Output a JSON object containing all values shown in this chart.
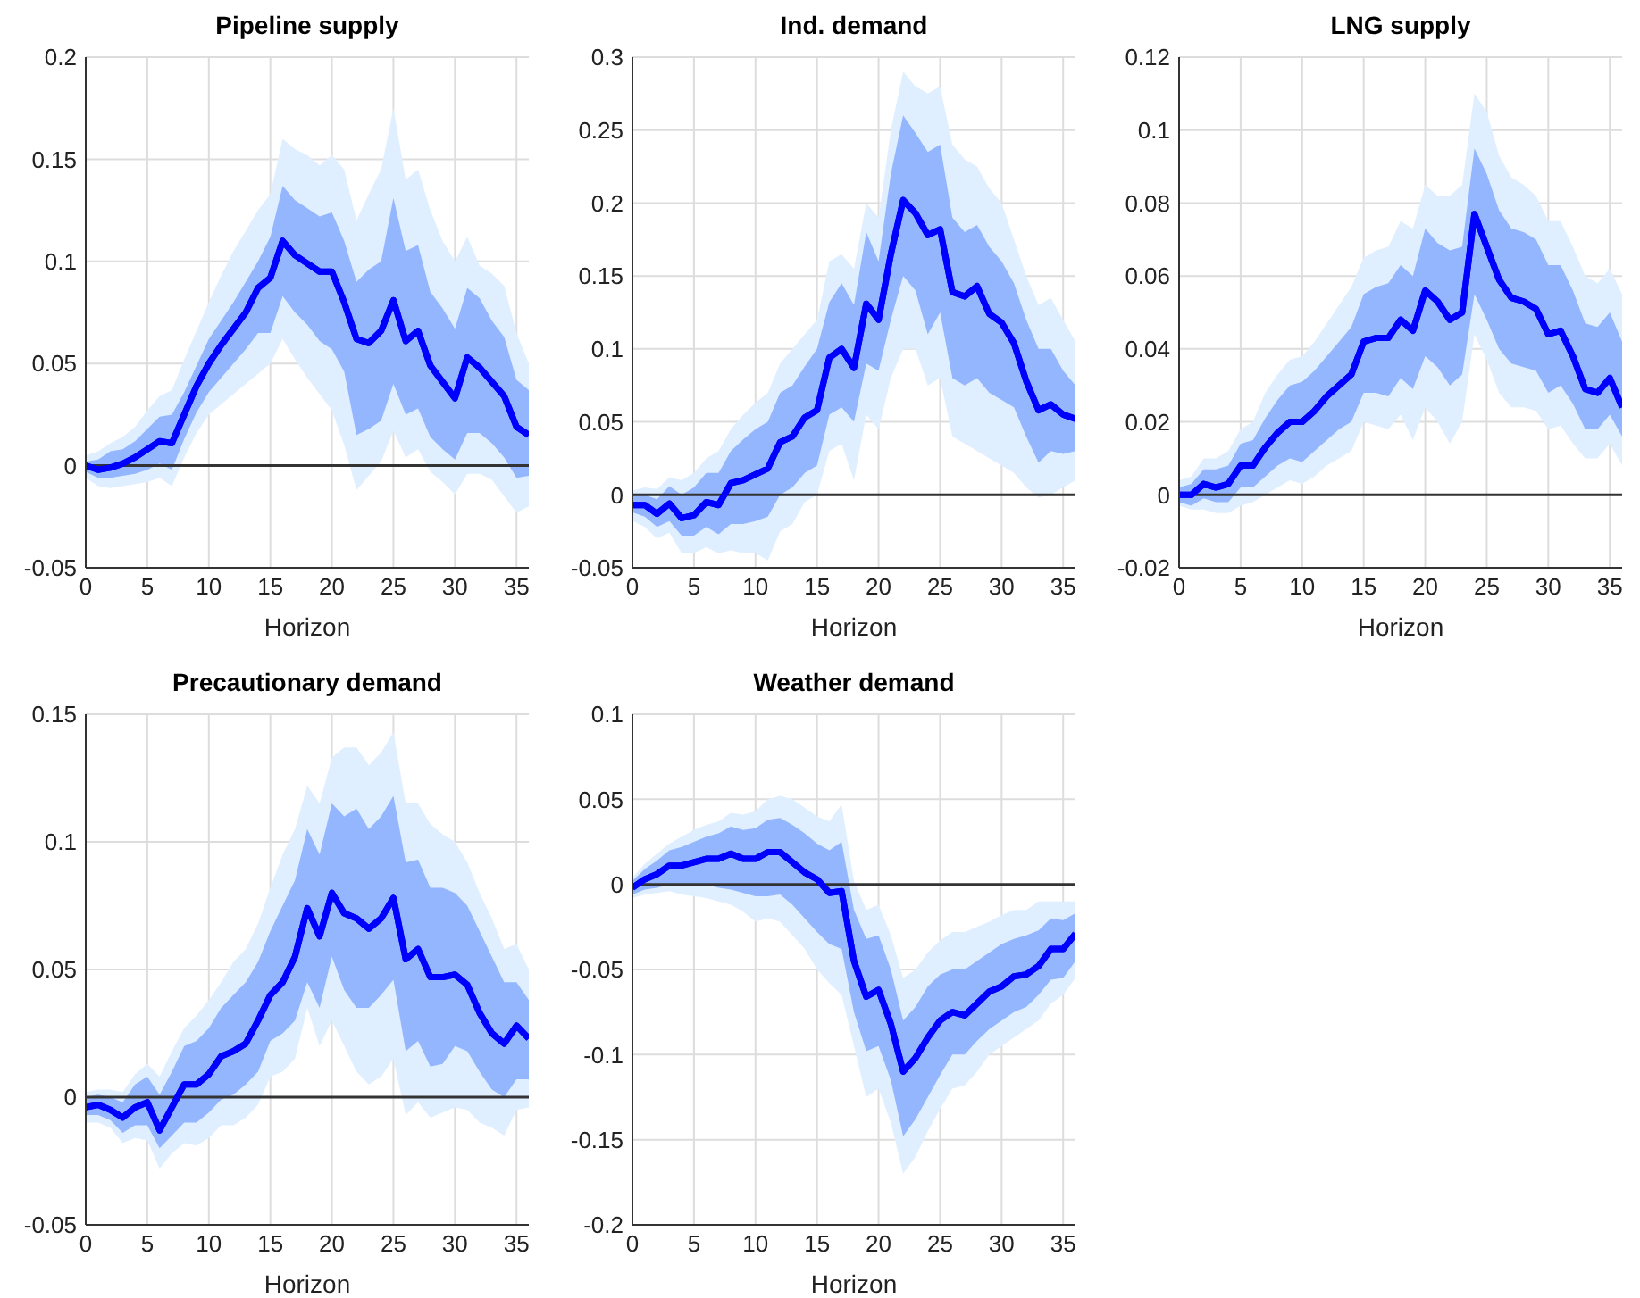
{
  "chart_data": [
    {
      "type": "line",
      "title": "Pipeline supply",
      "xlabel": "Horizon",
      "x": [
        0,
        1,
        2,
        3,
        4,
        5,
        6,
        7,
        8,
        9,
        10,
        11,
        12,
        13,
        14,
        15,
        16,
        17,
        18,
        19,
        20,
        21,
        22,
        23,
        24,
        25,
        26,
        27,
        28,
        29,
        30,
        31,
        32,
        33,
        34,
        35,
        36
      ],
      "xlim": [
        0,
        36
      ],
      "xticks": [
        0,
        5,
        10,
        15,
        20,
        25,
        30,
        35
      ],
      "ylim": [
        -0.05,
        0.2
      ],
      "yticks": [
        -0.05,
        0,
        0.05,
        0.1,
        0.15,
        0.2
      ],
      "grid": true,
      "marker": "none",
      "line_style": "solid",
      "ref_lines": [
        {
          "axis": "y",
          "value": 0,
          "color": "#333333"
        }
      ],
      "series": [
        {
          "type": "line",
          "color": "#0000ff",
          "values": [
            0,
            -0.002,
            -0.001,
            0.001,
            0.004,
            0.008,
            0.012,
            0.011,
            0.025,
            0.039,
            0.05,
            0.059,
            0.067,
            0.075,
            0.087,
            0.092,
            0.11,
            0.103,
            0.099,
            0.095,
            0.095,
            0.08,
            0.062,
            0.06,
            0.066,
            0.081,
            0.061,
            0.066,
            0.049,
            0.041,
            0.033,
            0.053,
            0.048,
            0.041,
            0.034,
            0.019,
            0.015
          ],
          "lower": [
            -0.006,
            -0.01,
            -0.011,
            -0.01,
            -0.009,
            -0.008,
            -0.006,
            -0.01,
            0.004,
            0.016,
            0.025,
            0.03,
            0.035,
            0.04,
            0.045,
            0.05,
            0.062,
            0.052,
            0.043,
            0.035,
            0.027,
            0.01,
            -0.012,
            -0.005,
            0.002,
            0.017,
            0.004,
            0.008,
            -0.003,
            -0.008,
            -0.014,
            -0.004,
            -0.004,
            -0.007,
            -0.015,
            -0.023,
            -0.02
          ],
          "upper": [
            0.005,
            0.007,
            0.011,
            0.014,
            0.019,
            0.027,
            0.034,
            0.037,
            0.052,
            0.066,
            0.08,
            0.093,
            0.105,
            0.115,
            0.125,
            0.133,
            0.16,
            0.155,
            0.152,
            0.147,
            0.152,
            0.145,
            0.12,
            0.133,
            0.145,
            0.175,
            0.14,
            0.145,
            0.125,
            0.11,
            0.1,
            0.112,
            0.098,
            0.094,
            0.088,
            0.065,
            0.05
          ]
        },
        {
          "type": "line",
          "color": "#0000ff",
          "lower": [
            -0.003,
            -0.006,
            -0.006,
            -0.005,
            -0.004,
            -0.002,
            0.001,
            -0.002,
            0.013,
            0.026,
            0.036,
            0.043,
            0.05,
            0.057,
            0.065,
            0.065,
            0.083,
            0.075,
            0.069,
            0.061,
            0.057,
            0.046,
            0.015,
            0.018,
            0.022,
            0.04,
            0.025,
            0.028,
            0.014,
            0.008,
            0.003,
            0.016,
            0.016,
            0.011,
            0.004,
            -0.006,
            -0.005
          ],
          "upper": [
            0.002,
            0.003,
            0.007,
            0.008,
            0.012,
            0.018,
            0.024,
            0.025,
            0.036,
            0.049,
            0.062,
            0.071,
            0.08,
            0.09,
            0.1,
            0.112,
            0.137,
            0.13,
            0.126,
            0.122,
            0.124,
            0.11,
            0.09,
            0.096,
            0.1,
            0.131,
            0.105,
            0.108,
            0.085,
            0.077,
            0.067,
            0.087,
            0.082,
            0.071,
            0.063,
            0.042,
            0.037
          ],
          "values": [
            0,
            -0.002,
            -0.001,
            0.001,
            0.004,
            0.008,
            0.012,
            0.011,
            0.025,
            0.039,
            0.05,
            0.059,
            0.067,
            0.075,
            0.087,
            0.092,
            0.11,
            0.103,
            0.099,
            0.095,
            0.095,
            0.08,
            0.062,
            0.06,
            0.066,
            0.081,
            0.061,
            0.066,
            0.049,
            0.041,
            0.033,
            0.053,
            0.048,
            0.041,
            0.034,
            0.019,
            0.015
          ]
        }
      ]
    },
    {
      "type": "line",
      "title": "Ind. demand",
      "xlabel": "Horizon",
      "x": [
        0,
        1,
        2,
        3,
        4,
        5,
        6,
        7,
        8,
        9,
        10,
        11,
        12,
        13,
        14,
        15,
        16,
        17,
        18,
        19,
        20,
        21,
        22,
        23,
        24,
        25,
        26,
        27,
        28,
        29,
        30,
        31,
        32,
        33,
        34,
        35,
        36
      ],
      "xlim": [
        0,
        36
      ],
      "xticks": [
        0,
        5,
        10,
        15,
        20,
        25,
        30,
        35
      ],
      "ylim": [
        -0.05,
        0.3
      ],
      "yticks": [
        -0.05,
        0,
        0.05,
        0.1,
        0.15,
        0.2,
        0.25,
        0.3
      ],
      "grid": true,
      "marker": "none",
      "line_style": "solid",
      "ref_lines": [
        {
          "axis": "y",
          "value": 0,
          "color": "#333333"
        }
      ],
      "series": [
        {
          "type": "line",
          "color": "#0000ff",
          "values": [
            -0.007,
            -0.007,
            -0.013,
            -0.006,
            -0.016,
            -0.014,
            -0.005,
            -0.007,
            0.008,
            0.01,
            0.014,
            0.018,
            0.036,
            0.04,
            0.053,
            0.058,
            0.094,
            0.1,
            0.087,
            0.131,
            0.12,
            0.165,
            0.202,
            0.193,
            0.178,
            0.182,
            0.139,
            0.136,
            0.143,
            0.124,
            0.118,
            0.104,
            0.078,
            0.058,
            0.062,
            0.055,
            0.052
          ],
          "lower": [
            -0.018,
            -0.022,
            -0.03,
            -0.026,
            -0.04,
            -0.04,
            -0.036,
            -0.04,
            -0.038,
            -0.04,
            -0.04,
            -0.045,
            -0.025,
            -0.02,
            -0.005,
            0,
            0.03,
            0.035,
            0.01,
            0.055,
            0.045,
            0.08,
            0.1,
            0.1,
            0.075,
            0.08,
            0.04,
            0.035,
            0.03,
            0.025,
            0.02,
            0.015,
            0.005,
            -0.002,
            0,
            0.005,
            0.01
          ],
          "upper": [
            0.003,
            0.005,
            0.004,
            0.012,
            0.01,
            0.015,
            0.025,
            0.03,
            0.045,
            0.055,
            0.063,
            0.07,
            0.09,
            0.1,
            0.11,
            0.12,
            0.16,
            0.165,
            0.155,
            0.2,
            0.19,
            0.25,
            0.29,
            0.28,
            0.275,
            0.28,
            0.24,
            0.23,
            0.225,
            0.21,
            0.2,
            0.175,
            0.15,
            0.13,
            0.135,
            0.12,
            0.105
          ]
        },
        {
          "type": "line",
          "color": "#0000ff",
          "lower": [
            -0.012,
            -0.015,
            -0.022,
            -0.018,
            -0.028,
            -0.028,
            -0.022,
            -0.027,
            -0.02,
            -0.02,
            -0.018,
            -0.015,
            0,
            0.005,
            0.015,
            0.02,
            0.055,
            0.06,
            0.05,
            0.09,
            0.085,
            0.12,
            0.15,
            0.14,
            0.11,
            0.125,
            0.08,
            0.075,
            0.08,
            0.07,
            0.065,
            0.06,
            0.04,
            0.022,
            0.03,
            0.028,
            0.03
          ],
          "upper": [
            0,
            0,
            -0.003,
            0.006,
            0,
            0.005,
            0.015,
            0.015,
            0.03,
            0.038,
            0.045,
            0.05,
            0.07,
            0.075,
            0.088,
            0.1,
            0.132,
            0.145,
            0.13,
            0.18,
            0.16,
            0.22,
            0.26,
            0.248,
            0.235,
            0.24,
            0.19,
            0.18,
            0.185,
            0.17,
            0.16,
            0.145,
            0.12,
            0.1,
            0.1,
            0.085,
            0.075
          ],
          "values": [
            -0.007,
            -0.007,
            -0.013,
            -0.006,
            -0.016,
            -0.014,
            -0.005,
            -0.007,
            0.008,
            0.01,
            0.014,
            0.018,
            0.036,
            0.04,
            0.053,
            0.058,
            0.094,
            0.1,
            0.087,
            0.131,
            0.12,
            0.165,
            0.202,
            0.193,
            0.178,
            0.182,
            0.139,
            0.136,
            0.143,
            0.124,
            0.118,
            0.104,
            0.078,
            0.058,
            0.062,
            0.055,
            0.052
          ]
        }
      ]
    },
    {
      "type": "line",
      "title": "LNG supply",
      "xlabel": "Horizon",
      "x": [
        0,
        1,
        2,
        3,
        4,
        5,
        6,
        7,
        8,
        9,
        10,
        11,
        12,
        13,
        14,
        15,
        16,
        17,
        18,
        19,
        20,
        21,
        22,
        23,
        24,
        25,
        26,
        27,
        28,
        29,
        30,
        31,
        32,
        33,
        34,
        35,
        36
      ],
      "xlim": [
        0,
        36
      ],
      "xticks": [
        0,
        5,
        10,
        15,
        20,
        25,
        30,
        35
      ],
      "ylim": [
        -0.02,
        0.12
      ],
      "yticks": [
        -0.02,
        0,
        0.02,
        0.04,
        0.06,
        0.08,
        0.1,
        0.12
      ],
      "grid": true,
      "marker": "none",
      "line_style": "solid",
      "ref_lines": [
        {
          "axis": "y",
          "value": 0,
          "color": "#333333"
        }
      ],
      "series": [
        {
          "type": "line",
          "color": "#0000ff",
          "values": [
            0,
            0,
            0.003,
            0.002,
            0.003,
            0.008,
            0.008,
            0.013,
            0.017,
            0.02,
            0.02,
            0.023,
            0.027,
            0.03,
            0.033,
            0.042,
            0.043,
            0.043,
            0.048,
            0.045,
            0.056,
            0.053,
            0.048,
            0.05,
            0.077,
            0.068,
            0.059,
            0.054,
            0.053,
            0.051,
            0.044,
            0.045,
            0.038,
            0.029,
            0.028,
            0.032,
            0.024
          ],
          "lower": [
            -0.003,
            -0.004,
            -0.004,
            -0.005,
            -0.005,
            -0.003,
            -0.002,
            0,
            0.002,
            0.004,
            0.003,
            0.005,
            0.008,
            0.01,
            0.012,
            0.02,
            0.019,
            0.018,
            0.022,
            0.015,
            0.024,
            0.02,
            0.014,
            0.02,
            0.044,
            0.037,
            0.028,
            0.024,
            0.024,
            0.023,
            0.018,
            0.019,
            0.014,
            0.01,
            0.01,
            0.014,
            0.008
          ],
          "upper": [
            0.004,
            0.005,
            0.01,
            0.01,
            0.012,
            0.018,
            0.02,
            0.028,
            0.033,
            0.037,
            0.038,
            0.042,
            0.047,
            0.052,
            0.057,
            0.065,
            0.067,
            0.068,
            0.075,
            0.073,
            0.085,
            0.082,
            0.082,
            0.085,
            0.11,
            0.105,
            0.093,
            0.087,
            0.085,
            0.082,
            0.075,
            0.075,
            0.068,
            0.06,
            0.058,
            0.062,
            0.055
          ]
        },
        {
          "type": "line",
          "color": "#0000ff",
          "lower": [
            -0.002,
            -0.003,
            -0.001,
            -0.002,
            -0.002,
            0.002,
            0.002,
            0.005,
            0.008,
            0.01,
            0.009,
            0.012,
            0.015,
            0.018,
            0.02,
            0.028,
            0.028,
            0.027,
            0.032,
            0.029,
            0.038,
            0.035,
            0.03,
            0.033,
            0.055,
            0.048,
            0.04,
            0.036,
            0.035,
            0.034,
            0.028,
            0.03,
            0.025,
            0.018,
            0.018,
            0.022,
            0.016
          ],
          "upper": [
            0.002,
            0.003,
            0.007,
            0.007,
            0.008,
            0.014,
            0.015,
            0.021,
            0.026,
            0.03,
            0.031,
            0.034,
            0.038,
            0.042,
            0.046,
            0.055,
            0.057,
            0.058,
            0.063,
            0.06,
            0.073,
            0.069,
            0.067,
            0.068,
            0.095,
            0.088,
            0.078,
            0.073,
            0.072,
            0.07,
            0.063,
            0.063,
            0.056,
            0.047,
            0.046,
            0.05,
            0.042
          ],
          "values": [
            0,
            0,
            0.003,
            0.002,
            0.003,
            0.008,
            0.008,
            0.013,
            0.017,
            0.02,
            0.02,
            0.023,
            0.027,
            0.03,
            0.033,
            0.042,
            0.043,
            0.043,
            0.048,
            0.045,
            0.056,
            0.053,
            0.048,
            0.05,
            0.077,
            0.068,
            0.059,
            0.054,
            0.053,
            0.051,
            0.044,
            0.045,
            0.038,
            0.029,
            0.028,
            0.032,
            0.024
          ]
        }
      ]
    },
    {
      "type": "line",
      "title": "Precautionary demand",
      "xlabel": "Horizon",
      "x": [
        0,
        1,
        2,
        3,
        4,
        5,
        6,
        7,
        8,
        9,
        10,
        11,
        12,
        13,
        14,
        15,
        16,
        17,
        18,
        19,
        20,
        21,
        22,
        23,
        24,
        25,
        26,
        27,
        28,
        29,
        30,
        31,
        32,
        33,
        34,
        35,
        36
      ],
      "xlim": [
        0,
        36
      ],
      "xticks": [
        0,
        5,
        10,
        15,
        20,
        25,
        30,
        35
      ],
      "ylim": [
        -0.05,
        0.15
      ],
      "yticks": [
        -0.05,
        0,
        0.05,
        0.1,
        0.15
      ],
      "grid": true,
      "marker": "none",
      "line_style": "solid",
      "ref_lines": [
        {
          "axis": "y",
          "value": 0,
          "color": "#333333"
        }
      ],
      "series": [
        {
          "type": "line",
          "color": "#0000ff",
          "values": [
            -0.004,
            -0.003,
            -0.005,
            -0.008,
            -0.004,
            -0.002,
            -0.013,
            -0.004,
            0.005,
            0.005,
            0.009,
            0.016,
            0.018,
            0.021,
            0.03,
            0.04,
            0.045,
            0.055,
            0.074,
            0.063,
            0.08,
            0.072,
            0.07,
            0.066,
            0.07,
            0.078,
            0.054,
            0.058,
            0.047,
            0.047,
            0.048,
            0.044,
            0.033,
            0.025,
            0.021,
            0.028,
            0.023
          ],
          "lower": [
            -0.01,
            -0.01,
            -0.012,
            -0.018,
            -0.016,
            -0.017,
            -0.028,
            -0.022,
            -0.018,
            -0.019,
            -0.016,
            -0.011,
            -0.011,
            -0.008,
            -0.003,
            0.008,
            0.01,
            0.015,
            0.035,
            0.02,
            0.03,
            0.02,
            0.01,
            0.005,
            0.008,
            0.015,
            -0.007,
            -0.002,
            -0.008,
            -0.006,
            -0.004,
            -0.005,
            -0.01,
            -0.012,
            -0.015,
            -0.005,
            -0.004
          ],
          "upper": [
            0.002,
            0.003,
            0.003,
            0.002,
            0.009,
            0.013,
            0.008,
            0.018,
            0.027,
            0.032,
            0.038,
            0.045,
            0.053,
            0.058,
            0.068,
            0.082,
            0.095,
            0.105,
            0.122,
            0.115,
            0.133,
            0.137,
            0.137,
            0.13,
            0.135,
            0.143,
            0.115,
            0.115,
            0.107,
            0.103,
            0.1,
            0.092,
            0.08,
            0.07,
            0.058,
            0.06,
            0.05
          ]
        },
        {
          "type": "line",
          "color": "#0000ff",
          "lower": [
            -0.007,
            -0.007,
            -0.009,
            -0.014,
            -0.011,
            -0.011,
            -0.02,
            -0.015,
            -0.01,
            -0.01,
            -0.006,
            -0.001,
            0.001,
            0.005,
            0.01,
            0.022,
            0.025,
            0.03,
            0.045,
            0.035,
            0.055,
            0.042,
            0.035,
            0.035,
            0.04,
            0.046,
            0.018,
            0.022,
            0.012,
            0.013,
            0.02,
            0.018,
            0.01,
            0.003,
            0,
            0.007,
            0.007
          ],
          "upper": [
            0,
            0.001,
            0,
            -0.002,
            0.005,
            0.008,
            0.001,
            0.01,
            0.02,
            0.022,
            0.027,
            0.035,
            0.04,
            0.045,
            0.053,
            0.065,
            0.075,
            0.085,
            0.105,
            0.095,
            0.115,
            0.11,
            0.113,
            0.105,
            0.11,
            0.118,
            0.092,
            0.093,
            0.082,
            0.082,
            0.08,
            0.075,
            0.065,
            0.055,
            0.045,
            0.045,
            0.038
          ],
          "values": [
            -0.004,
            -0.003,
            -0.005,
            -0.008,
            -0.004,
            -0.002,
            -0.013,
            -0.004,
            0.005,
            0.005,
            0.009,
            0.016,
            0.018,
            0.021,
            0.03,
            0.04,
            0.045,
            0.055,
            0.074,
            0.063,
            0.08,
            0.072,
            0.07,
            0.066,
            0.07,
            0.078,
            0.054,
            0.058,
            0.047,
            0.047,
            0.048,
            0.044,
            0.033,
            0.025,
            0.021,
            0.028,
            0.023
          ]
        }
      ]
    },
    {
      "type": "line",
      "title": "Weather demand",
      "xlabel": "Horizon",
      "x": [
        0,
        1,
        2,
        3,
        4,
        5,
        6,
        7,
        8,
        9,
        10,
        11,
        12,
        13,
        14,
        15,
        16,
        17,
        18,
        19,
        20,
        21,
        22,
        23,
        24,
        25,
        26,
        27,
        28,
        29,
        30,
        31,
        32,
        33,
        34,
        35,
        36
      ],
      "xlim": [
        0,
        36
      ],
      "xticks": [
        0,
        5,
        10,
        15,
        20,
        25,
        30,
        35
      ],
      "ylim": [
        -0.2,
        0.1
      ],
      "yticks": [
        -0.2,
        -0.15,
        -0.1,
        -0.05,
        0,
        0.05,
        0.1
      ],
      "grid": true,
      "marker": "none",
      "line_style": "solid",
      "ref_lines": [
        {
          "axis": "y",
          "value": 0,
          "color": "#333333"
        }
      ],
      "series": [
        {
          "type": "line",
          "color": "#0000ff",
          "values": [
            -0.002,
            0.003,
            0.006,
            0.011,
            0.011,
            0.013,
            0.015,
            0.015,
            0.018,
            0.015,
            0.015,
            0.019,
            0.019,
            0.013,
            0.007,
            0.003,
            -0.005,
            -0.004,
            -0.045,
            -0.066,
            -0.062,
            -0.082,
            -0.11,
            -0.102,
            -0.09,
            -0.08,
            -0.075,
            -0.077,
            -0.07,
            -0.063,
            -0.06,
            -0.054,
            -0.053,
            -0.048,
            -0.038,
            -0.038,
            -0.029
          ],
          "lower": [
            -0.008,
            -0.006,
            -0.005,
            -0.004,
            -0.006,
            -0.007,
            -0.008,
            -0.01,
            -0.012,
            -0.016,
            -0.022,
            -0.02,
            -0.022,
            -0.03,
            -0.038,
            -0.05,
            -0.058,
            -0.065,
            -0.095,
            -0.125,
            -0.12,
            -0.14,
            -0.17,
            -0.16,
            -0.145,
            -0.132,
            -0.12,
            -0.118,
            -0.11,
            -0.1,
            -0.095,
            -0.09,
            -0.085,
            -0.08,
            -0.07,
            -0.065,
            -0.055
          ],
          "upper": [
            0.004,
            0.012,
            0.018,
            0.024,
            0.028,
            0.032,
            0.035,
            0.037,
            0.042,
            0.041,
            0.043,
            0.05,
            0.052,
            0.05,
            0.045,
            0.04,
            0.037,
            0.047,
            0.002,
            -0.015,
            -0.012,
            -0.03,
            -0.055,
            -0.05,
            -0.04,
            -0.033,
            -0.028,
            -0.028,
            -0.025,
            -0.022,
            -0.018,
            -0.015,
            -0.015,
            -0.01,
            -0.01,
            -0.01,
            -0.01
          ]
        },
        {
          "type": "line",
          "color": "#0000ff",
          "lower": [
            -0.006,
            -0.003,
            -0.002,
            0,
            -0.001,
            -0.001,
            0,
            -0.002,
            -0.003,
            -0.005,
            -0.007,
            -0.007,
            -0.006,
            -0.012,
            -0.02,
            -0.028,
            -0.035,
            -0.038,
            -0.075,
            -0.098,
            -0.095,
            -0.115,
            -0.148,
            -0.138,
            -0.125,
            -0.112,
            -0.1,
            -0.1,
            -0.092,
            -0.085,
            -0.08,
            -0.075,
            -0.072,
            -0.065,
            -0.056,
            -0.055,
            -0.045
          ],
          "upper": [
            0.002,
            0.009,
            0.014,
            0.02,
            0.022,
            0.025,
            0.028,
            0.03,
            0.034,
            0.032,
            0.033,
            0.038,
            0.039,
            0.035,
            0.03,
            0.024,
            0.02,
            0.025,
            -0.015,
            -0.032,
            -0.03,
            -0.05,
            -0.08,
            -0.072,
            -0.06,
            -0.053,
            -0.05,
            -0.05,
            -0.045,
            -0.04,
            -0.035,
            -0.032,
            -0.03,
            -0.027,
            -0.02,
            -0.021,
            -0.017
          ],
          "values": [
            -0.002,
            0.003,
            0.006,
            0.011,
            0.011,
            0.013,
            0.015,
            0.015,
            0.018,
            0.015,
            0.015,
            0.019,
            0.019,
            0.013,
            0.007,
            0.003,
            -0.005,
            -0.004,
            -0.045,
            -0.066,
            -0.062,
            -0.082,
            -0.11,
            -0.102,
            -0.09,
            -0.08,
            -0.075,
            -0.077,
            -0.07,
            -0.063,
            -0.06,
            -0.054,
            -0.053,
            -0.048,
            -0.038,
            -0.038,
            -0.029
          ]
        }
      ]
    }
  ]
}
